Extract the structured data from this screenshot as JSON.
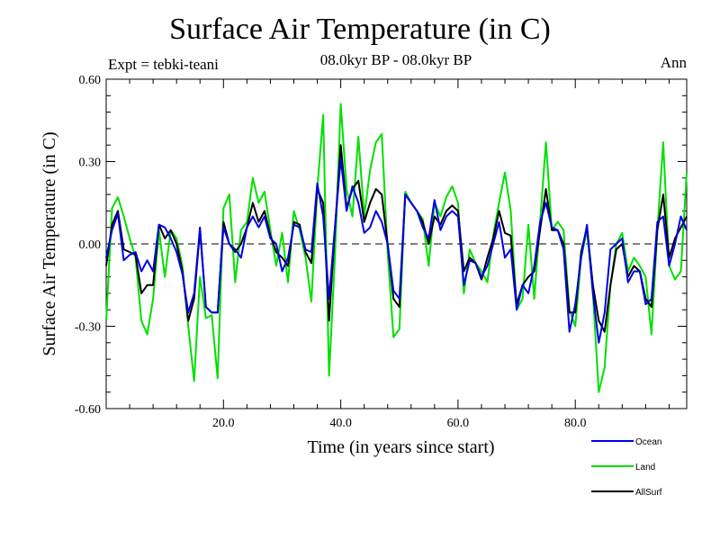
{
  "header": {
    "title": "Surface Air Temperature (in C)",
    "subtitle": "08.0kyr BP - 08.0kyr BP",
    "expt": "Expt = tebki-teani",
    "season": "Ann"
  },
  "chart_data": {
    "type": "line",
    "title": "Surface Air Temperature (in C)",
    "xlabel": "Time (in years since start)",
    "ylabel": "Surface Air Temperature (in C)",
    "xlim": [
      0,
      99
    ],
    "ylim": [
      -0.6,
      0.6
    ],
    "xticks": [
      20,
      40,
      60,
      80
    ],
    "xtick_labels": [
      "20.0",
      "40.0",
      "60.0",
      "80.0"
    ],
    "yticks": [
      -0.6,
      -0.3,
      0.0,
      0.3,
      0.6
    ],
    "ytick_labels": [
      "-0.60",
      "-0.30",
      "0.00",
      "0.30",
      "0.60"
    ],
    "zero_line": "dashed",
    "legend_position": "bottom-right",
    "x": [
      0,
      1,
      2,
      3,
      4,
      5,
      6,
      7,
      8,
      9,
      10,
      11,
      12,
      13,
      14,
      15,
      16,
      17,
      18,
      19,
      20,
      21,
      22,
      23,
      24,
      25,
      26,
      27,
      28,
      29,
      30,
      31,
      32,
      33,
      34,
      35,
      36,
      37,
      38,
      39,
      40,
      41,
      42,
      43,
      44,
      45,
      46,
      47,
      48,
      49,
      50,
      51,
      52,
      53,
      54,
      55,
      56,
      57,
      58,
      59,
      60,
      61,
      62,
      63,
      64,
      65,
      66,
      67,
      68,
      69,
      70,
      71,
      72,
      73,
      74,
      75,
      76,
      77,
      78,
      79,
      80,
      81,
      82,
      83,
      84,
      85,
      86,
      87,
      88,
      89,
      90,
      91,
      92,
      93,
      94,
      95,
      96,
      97,
      98,
      99
    ],
    "series": [
      {
        "name": "Land",
        "color": "#00e000",
        "values": [
          -0.28,
          0.13,
          0.17,
          0.1,
          0.02,
          -0.05,
          -0.28,
          -0.33,
          -0.2,
          0.05,
          -0.12,
          0.05,
          0.02,
          -0.08,
          -0.3,
          -0.5,
          -0.12,
          -0.27,
          -0.26,
          -0.49,
          0.13,
          0.18,
          -0.14,
          0.05,
          0.08,
          0.24,
          0.15,
          0.19,
          0.05,
          -0.08,
          0.04,
          -0.14,
          0.12,
          0.05,
          -0.05,
          -0.21,
          0.2,
          0.47,
          -0.48,
          -0.05,
          0.51,
          0.2,
          0.1,
          0.39,
          0.1,
          0.27,
          0.37,
          0.4,
          -0.03,
          -0.34,
          -0.31,
          0.19,
          0.15,
          0.12,
          0.09,
          -0.08,
          0.15,
          0.1,
          0.17,
          0.21,
          0.15,
          -0.18,
          -0.02,
          -0.07,
          -0.1,
          -0.14,
          0.03,
          0.15,
          0.26,
          0.12,
          -0.24,
          -0.2,
          0.07,
          -0.2,
          0.08,
          0.37,
          0.05,
          0.08,
          0.05,
          -0.24,
          -0.3,
          -0.05,
          0.05,
          -0.18,
          -0.54,
          -0.45,
          -0.15,
          0.0,
          0.04,
          -0.1,
          -0.05,
          -0.08,
          -0.12,
          -0.33,
          0.05,
          0.37,
          -0.08,
          -0.13,
          -0.1,
          0.26
        ]
      },
      {
        "name": "AllSurf",
        "color": "#000000",
        "values": [
          -0.08,
          0.07,
          0.12,
          -0.02,
          -0.03,
          -0.04,
          -0.18,
          -0.15,
          -0.15,
          0.07,
          0.02,
          0.05,
          0.0,
          -0.1,
          -0.28,
          -0.2,
          0.05,
          -0.23,
          -0.25,
          -0.25,
          0.08,
          0.0,
          -0.03,
          0.0,
          0.06,
          0.15,
          0.08,
          0.12,
          0.03,
          -0.03,
          -0.05,
          -0.08,
          0.08,
          0.07,
          -0.03,
          -0.07,
          0.2,
          0.15,
          -0.28,
          0.05,
          0.36,
          0.13,
          0.2,
          0.23,
          0.08,
          0.15,
          0.2,
          0.18,
          0.0,
          -0.2,
          -0.23,
          0.18,
          0.15,
          0.12,
          0.08,
          0.0,
          0.1,
          0.07,
          0.12,
          0.14,
          0.12,
          -0.1,
          -0.05,
          -0.07,
          -0.13,
          -0.05,
          0.02,
          0.12,
          0.04,
          0.03,
          -0.22,
          -0.15,
          -0.12,
          -0.1,
          0.05,
          0.2,
          0.05,
          0.05,
          0.0,
          -0.25,
          -0.25,
          -0.03,
          0.06,
          -0.15,
          -0.28,
          -0.32,
          -0.15,
          -0.02,
          0.0,
          -0.12,
          -0.08,
          -0.1,
          -0.2,
          -0.23,
          0.05,
          0.18,
          -0.05,
          0.02,
          0.06,
          0.1
        ]
      },
      {
        "name": "Ocean",
        "color": "#0000e6",
        "values": [
          -0.05,
          0.05,
          0.11,
          -0.06,
          -0.04,
          -0.03,
          -0.1,
          -0.06,
          -0.1,
          0.07,
          0.06,
          0.02,
          -0.03,
          -0.11,
          -0.25,
          -0.18,
          0.06,
          -0.23,
          -0.25,
          -0.25,
          0.06,
          0.0,
          -0.02,
          -0.05,
          0.06,
          0.1,
          0.06,
          0.1,
          0.02,
          0.0,
          -0.1,
          -0.05,
          0.07,
          0.06,
          -0.02,
          -0.03,
          0.22,
          0.1,
          -0.2,
          0.06,
          0.31,
          0.12,
          0.21,
          0.15,
          0.04,
          0.06,
          0.12,
          0.08,
          0.0,
          -0.17,
          -0.2,
          0.18,
          0.15,
          0.12,
          0.06,
          0.02,
          0.16,
          0.05,
          0.1,
          0.12,
          0.1,
          -0.15,
          -0.06,
          -0.07,
          -0.12,
          -0.08,
          0.0,
          0.08,
          -0.05,
          -0.02,
          -0.24,
          -0.15,
          -0.18,
          -0.08,
          0.08,
          0.15,
          0.06,
          0.05,
          -0.02,
          -0.32,
          -0.22,
          -0.05,
          0.07,
          -0.18,
          -0.36,
          -0.25,
          -0.02,
          0.0,
          0.02,
          -0.14,
          -0.1,
          -0.1,
          -0.22,
          -0.2,
          0.08,
          0.1,
          -0.08,
          0.0,
          0.1,
          0.05
        ]
      }
    ],
    "legend": [
      {
        "name": "Ocean",
        "color": "#0000e6"
      },
      {
        "name": "Land",
        "color": "#00e000"
      },
      {
        "name": "AllSurf",
        "color": "#000000"
      }
    ]
  }
}
